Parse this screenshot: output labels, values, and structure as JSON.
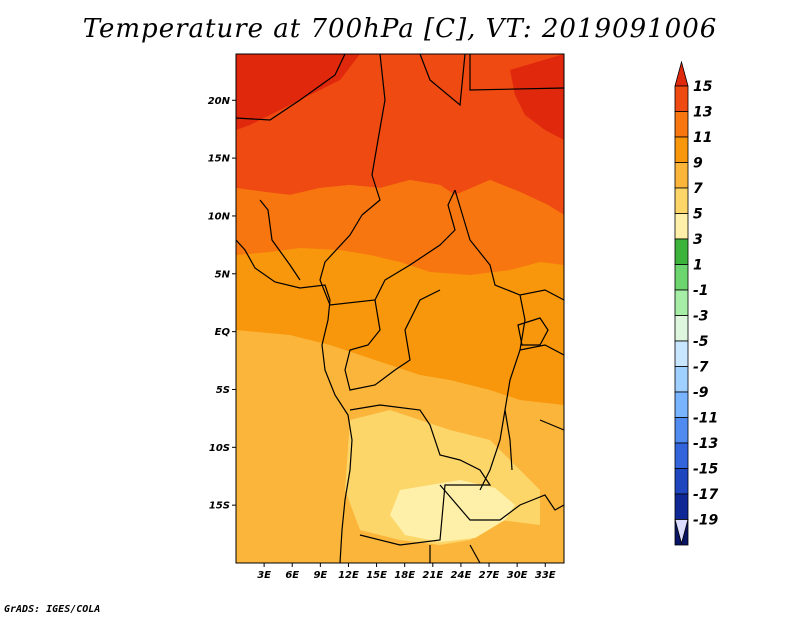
{
  "title": "Temperature at 700hPa [C], VT: 2019091006",
  "footer": "GrADS: IGES/COLA",
  "map": {
    "lon_range": [
      0,
      35
    ],
    "lat_range": [
      -20,
      24
    ],
    "lat_ticks": [
      {
        "value": 20,
        "label": "20N"
      },
      {
        "value": 15,
        "label": "15N"
      },
      {
        "value": 10,
        "label": "10N"
      },
      {
        "value": 5,
        "label": "5N"
      },
      {
        "value": 0,
        "label": "EQ"
      },
      {
        "value": -5,
        "label": "5S"
      },
      {
        "value": -10,
        "label": "10S"
      },
      {
        "value": -15,
        "label": "15S"
      }
    ],
    "lon_ticks": [
      {
        "value": 3,
        "label": "3E"
      },
      {
        "value": 6,
        "label": "6E"
      },
      {
        "value": 9,
        "label": "9E"
      },
      {
        "value": 12,
        "label": "12E"
      },
      {
        "value": 15,
        "label": "15E"
      },
      {
        "value": 18,
        "label": "18E"
      },
      {
        "value": 21,
        "label": "21E"
      },
      {
        "value": 24,
        "label": "24E"
      },
      {
        "value": 27,
        "label": "27E"
      },
      {
        "value": 30,
        "label": "30E"
      },
      {
        "value": 33,
        "label": "33E"
      }
    ]
  },
  "colorbar": {
    "labels": [
      "15",
      "13",
      "11",
      "9",
      "7",
      "5",
      "3",
      "1",
      "-1",
      "-3",
      "-5",
      "-7",
      "-9",
      "-11",
      "-13",
      "-15",
      "-17",
      "-19"
    ],
    "colors": [
      "#e0280c",
      "#ef4a12",
      "#f7760f",
      "#f8960c",
      "#fab53a",
      "#fdd66a",
      "#fef0a8",
      "#3cb43c",
      "#6dd56d",
      "#a6eda6",
      "#ddf6dd",
      "#c8e6ff",
      "#9fd0ff",
      "#78b4ff",
      "#508cf0",
      "#3264dc",
      "#1e46be",
      "#0f2896",
      "#0a1464"
    ],
    "over_color": "#e0280c",
    "under_color": "#dcdcff"
  },
  "regions": [
    {
      "name": "region-11-13-north",
      "color": "#ef4a12"
    },
    {
      "name": "region-9-11-band",
      "color": "#f7760f"
    },
    {
      "name": "region-7-9-central",
      "color": "#f8960c"
    },
    {
      "name": "region-5-7-south",
      "color": "#fab53a"
    },
    {
      "name": "region-3-5-angola",
      "color": "#fdd66a"
    },
    {
      "name": "region-1-3-zambia",
      "color": "#fef0a8"
    },
    {
      "name": "region-13-15-sudan",
      "color": "#e0280c"
    }
  ]
}
